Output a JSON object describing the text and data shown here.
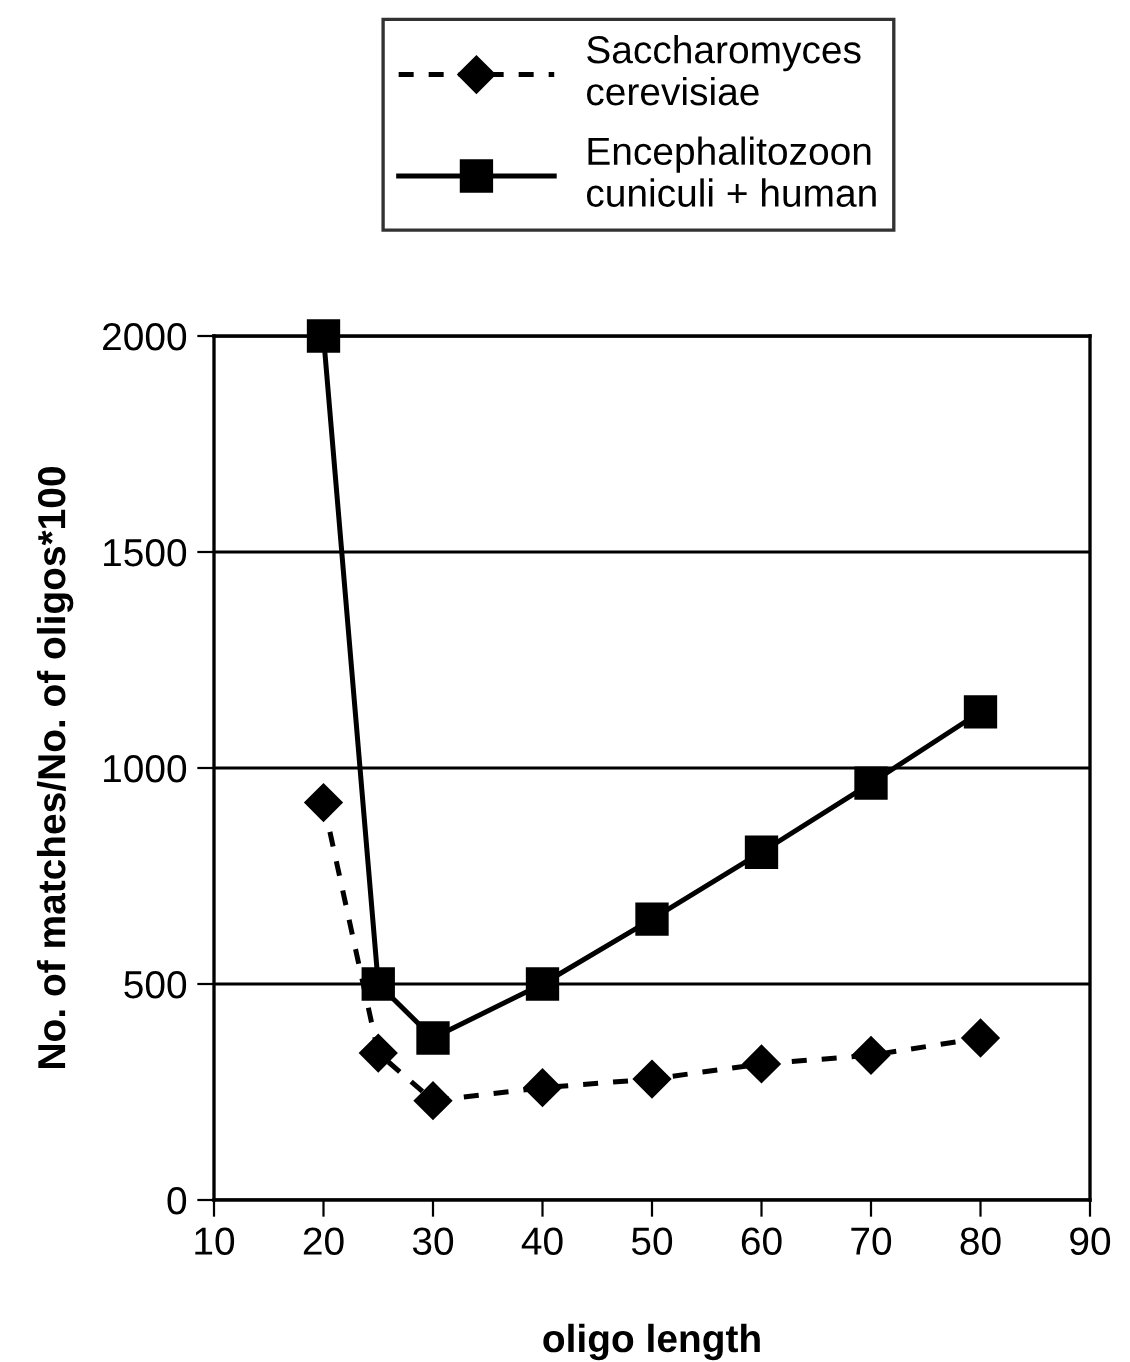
{
  "chart_data": {
    "type": "line",
    "xlabel": "oligo length",
    "ylabel": "No. of matches/No. of oligos*100",
    "xlim": [
      10,
      90
    ],
    "xticks": [
      10,
      20,
      30,
      40,
      50,
      60,
      70,
      80,
      90
    ],
    "ylim": [
      0,
      2000
    ],
    "yticks": [
      0,
      500,
      1000,
      1500,
      2000
    ],
    "grid": "y",
    "legend": "top",
    "series": [
      {
        "name": "Saccharomyces\ncerevisiae",
        "color": "#000000",
        "marker": "diamond",
        "line_style": "dashed",
        "x": [
          20,
          25,
          30,
          40,
          50,
          60,
          70,
          80
        ],
        "values": [
          920,
          340,
          230,
          260,
          280,
          315,
          335,
          375
        ]
      },
      {
        "name": "Encephalitozoon\ncuniculi + human",
        "color": "#000000",
        "marker": "square",
        "line_style": "solid",
        "x": [
          20,
          25,
          30,
          40,
          50,
          60,
          70,
          80
        ],
        "values": [
          2000,
          500,
          375,
          500,
          650,
          805,
          965,
          1130
        ]
      }
    ]
  }
}
